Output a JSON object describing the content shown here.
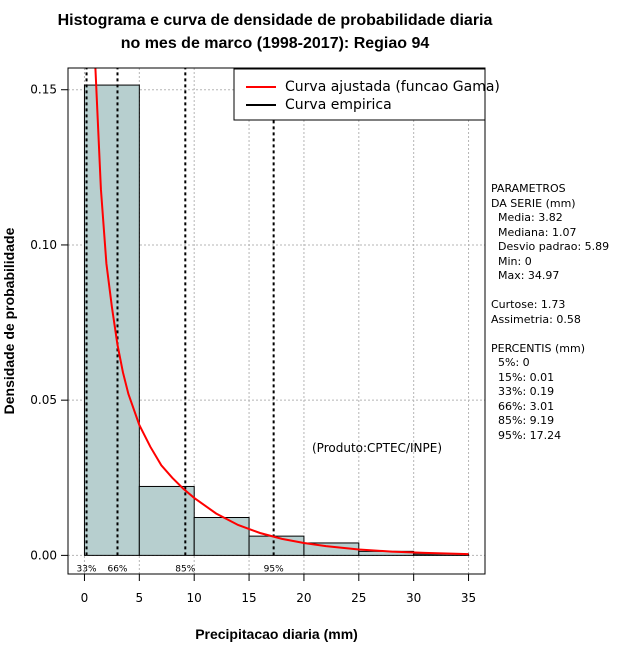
{
  "chart_data": {
    "type": "bar",
    "title_line1": "Histograma e curva de densidade de probabilidade diaria",
    "title_line2": "no mes de marco (1998-2017): Regiao 94",
    "xlabel": "Precipitacao diaria (mm)",
    "ylabel": "Densidade de probabilidade",
    "xlim": [
      -1.5,
      36.5
    ],
    "ylim": [
      -0.006,
      0.157
    ],
    "xticks": [
      0,
      5,
      10,
      15,
      20,
      25,
      30,
      35
    ],
    "yticks": [
      0.0,
      0.05,
      0.1,
      0.15
    ],
    "ytick_labels": [
      "0.00",
      "0.05",
      "0.10",
      "0.15"
    ],
    "grid": true,
    "bin_edges": [
      0,
      5,
      10,
      15,
      20,
      25,
      30,
      35
    ],
    "densities": [
      0.1515,
      0.0222,
      0.0122,
      0.0062,
      0.004,
      0.0013,
      0.0004
    ],
    "fitted_curve": {
      "name": "Curva ajustada (funcao Gama)",
      "color": "#ff0000",
      "x": [
        1.0,
        1.5,
        2.0,
        2.5,
        3.0,
        3.5,
        4.0,
        5.0,
        6.0,
        7.0,
        8.0,
        9.0,
        10.0,
        12.0,
        14.0,
        16.0,
        18.0,
        20.0,
        22.0,
        25.0,
        28.0,
        31.0,
        35.0
      ],
      "y": [
        0.165,
        0.118,
        0.094,
        0.08,
        0.068,
        0.059,
        0.052,
        0.042,
        0.035,
        0.029,
        0.025,
        0.0215,
        0.0185,
        0.0135,
        0.0098,
        0.0072,
        0.0053,
        0.004,
        0.003,
        0.0019,
        0.0012,
        0.0008,
        0.0004
      ]
    },
    "empirical_curve": {
      "name": "Curva empirica",
      "color": "#000000"
    },
    "percentile_lines": [
      {
        "label": "33%",
        "x": 0.19
      },
      {
        "label": "66%",
        "x": 3.01
      },
      {
        "label": "85%",
        "x": 9.19
      },
      {
        "label": "95%",
        "x": 17.24
      }
    ],
    "annotation": "(Produto:CPTEC/INPE)",
    "legend_position": "top-right",
    "bar_color": "#b7cfcf"
  },
  "stats": {
    "header1": "PARAMETROS",
    "header2": "DA SERIE (mm)",
    "params": [
      "  Media: 3.82",
      "  Mediana: 1.07",
      "  Desvio padrao: 5.89",
      "  Min: 0",
      "  Max: 34.97"
    ],
    "shape": [
      "Curtose: 1.73",
      "Assimetria: 0.58"
    ],
    "percentis_header": "PERCENTIS (mm)",
    "percentis": [
      "  5%: 0",
      "  15%: 0.01",
      "  33%: 0.19",
      "  66%: 3.01",
      "  85%: 9.19",
      "  95%: 17.24"
    ]
  }
}
